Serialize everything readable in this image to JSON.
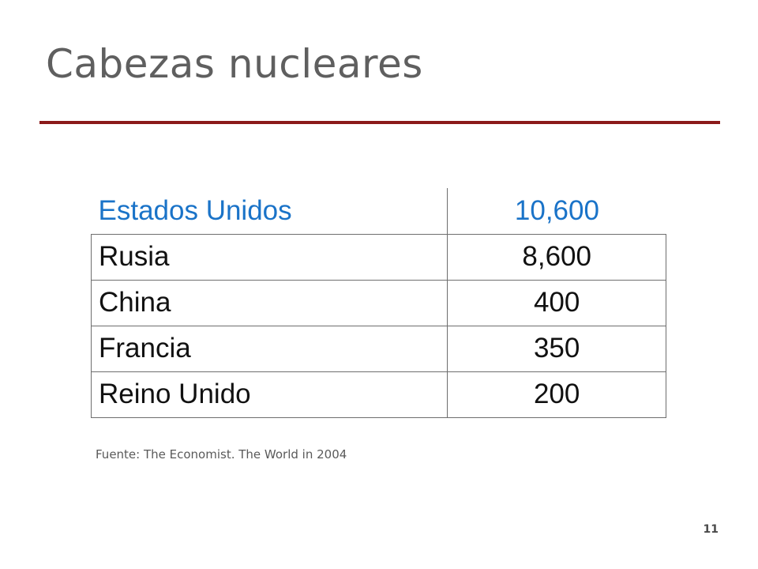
{
  "slide": {
    "title": "Cabezas nucleares",
    "accent_color": "#8b1a1a",
    "header_color": "#1a73c8",
    "table": {
      "header": {
        "country": "Estados Unidos",
        "value": "10,600"
      },
      "rows": [
        {
          "country": "Rusia",
          "value": "8,600"
        },
        {
          "country": "China",
          "value": "400"
        },
        {
          "country": "Francia",
          "value": "350"
        },
        {
          "country": "Reino Unido",
          "value": "200"
        }
      ]
    },
    "source": "Fuente: The Economist. The World in 2004",
    "page_number": "11"
  }
}
